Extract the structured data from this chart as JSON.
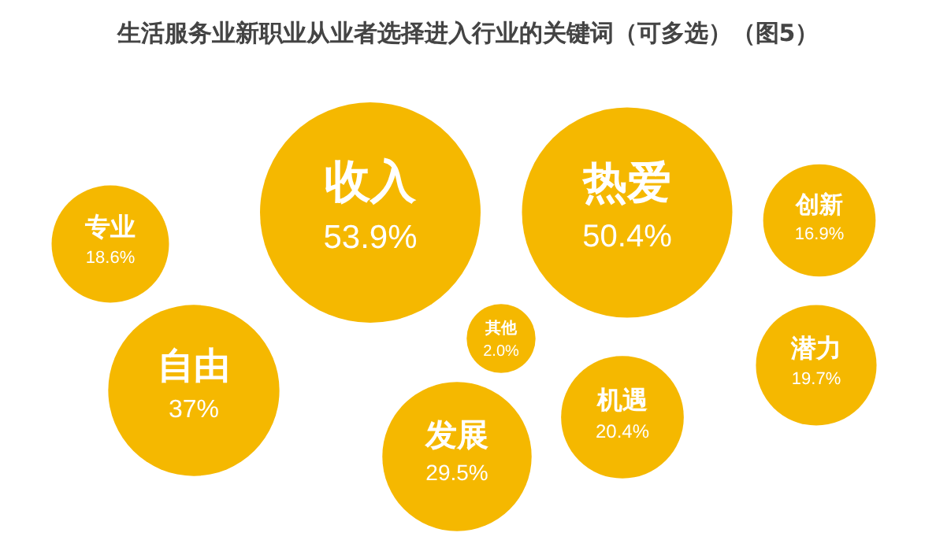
{
  "chart_data": {
    "type": "other",
    "title": "生活服务业新职业从业者选择进入行业的关键词（可多选）（图5）",
    "categories": [
      "收入",
      "热爱",
      "自由",
      "发展",
      "机遇",
      "潜力",
      "专业",
      "创新",
      "其他"
    ],
    "values": [
      53.9,
      50.4,
      37,
      29.5,
      20.4,
      19.7,
      18.6,
      16.9,
      2.0
    ],
    "value_labels": [
      "53.9%",
      "50.4%",
      "37%",
      "29.5%",
      "20.4%",
      "19.7%",
      "18.6%",
      "16.9%",
      "2.0%"
    ],
    "colors": [
      "#f5b800",
      "#f5b800",
      "#f5b800",
      "#f5b800",
      "#f5b800",
      "#f5b800",
      "#f5b800",
      "#f5b800",
      "#f5b800"
    ]
  }
}
